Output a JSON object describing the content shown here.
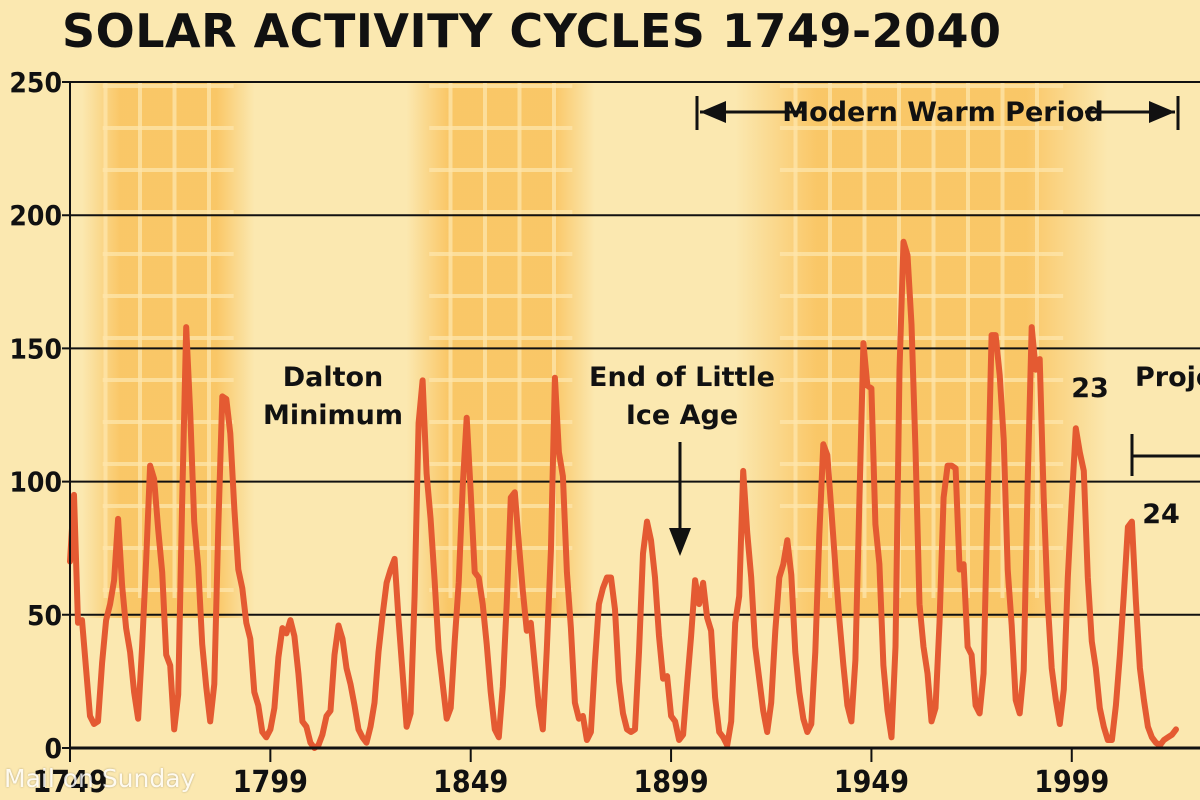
{
  "title": "SOLAR ACTIVITY CYCLES 1749-2040",
  "credit": "Mail on Sunday",
  "colors": {
    "background": "#fbe8b0",
    "band": "#f9c15a",
    "line": "#e45a32",
    "gridline": "#111111"
  },
  "annotations": {
    "dalton": [
      "Dalton",
      "Minimum"
    ],
    "little_ice_age": [
      "End of Little",
      "Ice Age"
    ],
    "modern_warm": "Modern Warm Period",
    "cycle23": "23",
    "cycle24": "24",
    "projected": "Proje"
  },
  "chart_data": {
    "type": "line",
    "title": "SOLAR ACTIVITY CYCLES 1749-2040",
    "xlabel": "",
    "ylabel": "",
    "xlim": [
      1749,
      2030
    ],
    "ylim": [
      0,
      250
    ],
    "y_ticks": [
      0,
      50,
      100,
      150,
      200,
      250
    ],
    "x_tick_labels": [
      "1749",
      "1799",
      "1849",
      "1899",
      "1949",
      "1999"
    ],
    "x_ticks": [
      1749,
      1799,
      1849,
      1899,
      1949,
      1999
    ],
    "grid": "horizontal",
    "shaded_periods": [
      [
        1752,
        1795
      ],
      [
        1833,
        1880
      ],
      [
        1915,
        2008
      ]
    ],
    "series": [
      {
        "name": "",
        "values": [
          [
            1749,
            70
          ],
          [
            1750,
            95
          ],
          [
            1751,
            47
          ],
          [
            1752,
            48
          ],
          [
            1753,
            30
          ],
          [
            1754,
            12
          ],
          [
            1755,
            9
          ],
          [
            1756,
            10
          ],
          [
            1757,
            32
          ],
          [
            1758,
            48
          ],
          [
            1759,
            54
          ],
          [
            1760,
            63
          ],
          [
            1761,
            86
          ],
          [
            1762,
            61
          ],
          [
            1763,
            45
          ],
          [
            1764,
            36
          ],
          [
            1765,
            21
          ],
          [
            1766,
            11
          ],
          [
            1767,
            38
          ],
          [
            1768,
            70
          ],
          [
            1769,
            106
          ],
          [
            1770,
            101
          ],
          [
            1771,
            82
          ],
          [
            1772,
            66
          ],
          [
            1773,
            35
          ],
          [
            1774,
            31
          ],
          [
            1775,
            7
          ],
          [
            1776,
            20
          ],
          [
            1777,
            93
          ],
          [
            1778,
            158
          ],
          [
            1779,
            126
          ],
          [
            1780,
            85
          ],
          [
            1781,
            68
          ],
          [
            1782,
            39
          ],
          [
            1783,
            23
          ],
          [
            1784,
            10
          ],
          [
            1785,
            24
          ],
          [
            1786,
            83
          ],
          [
            1787,
            132
          ],
          [
            1788,
            131
          ],
          [
            1789,
            118
          ],
          [
            1790,
            90
          ],
          [
            1791,
            67
          ],
          [
            1792,
            60
          ],
          [
            1793,
            47
          ],
          [
            1794,
            41
          ],
          [
            1795,
            21
          ],
          [
            1796,
            16
          ],
          [
            1797,
            6
          ],
          [
            1798,
            4
          ],
          [
            1799,
            7
          ],
          [
            1800,
            15
          ],
          [
            1801,
            34
          ],
          [
            1802,
            45
          ],
          [
            1803,
            43
          ],
          [
            1804,
            48
          ],
          [
            1805,
            42
          ],
          [
            1806,
            28
          ],
          [
            1807,
            10
          ],
          [
            1808,
            8
          ],
          [
            1809,
            2
          ],
          [
            1810,
            0
          ],
          [
            1811,
            1
          ],
          [
            1812,
            5
          ],
          [
            1813,
            12
          ],
          [
            1814,
            14
          ],
          [
            1815,
            35
          ],
          [
            1816,
            46
          ],
          [
            1817,
            41
          ],
          [
            1818,
            30
          ],
          [
            1819,
            24
          ],
          [
            1820,
            16
          ],
          [
            1821,
            7
          ],
          [
            1822,
            4
          ],
          [
            1823,
            2
          ],
          [
            1824,
            8
          ],
          [
            1825,
            17
          ],
          [
            1826,
            36
          ],
          [
            1827,
            50
          ],
          [
            1828,
            62
          ],
          [
            1829,
            67
          ],
          [
            1830,
            71
          ],
          [
            1831,
            48
          ],
          [
            1832,
            28
          ],
          [
            1833,
            8
          ],
          [
            1834,
            13
          ],
          [
            1835,
            57
          ],
          [
            1836,
            122
          ],
          [
            1837,
            138
          ],
          [
            1838,
            103
          ],
          [
            1839,
            86
          ],
          [
            1840,
            63
          ],
          [
            1841,
            37
          ],
          [
            1842,
            24
          ],
          [
            1843,
            11
          ],
          [
            1844,
            15
          ],
          [
            1845,
            40
          ],
          [
            1846,
            62
          ],
          [
            1847,
            98
          ],
          [
            1848,
            124
          ],
          [
            1849,
            96
          ],
          [
            1850,
            66
          ],
          [
            1851,
            64
          ],
          [
            1852,
            54
          ],
          [
            1853,
            39
          ],
          [
            1854,
            21
          ],
          [
            1855,
            7
          ],
          [
            1856,
            4
          ],
          [
            1857,
            23
          ],
          [
            1858,
            55
          ],
          [
            1859,
            94
          ],
          [
            1860,
            96
          ],
          [
            1861,
            77
          ],
          [
            1862,
            59
          ],
          [
            1863,
            44
          ],
          [
            1864,
            47
          ],
          [
            1865,
            31
          ],
          [
            1866,
            16
          ],
          [
            1867,
            7
          ],
          [
            1868,
            37
          ],
          [
            1869,
            74
          ],
          [
            1870,
            139
          ],
          [
            1871,
            111
          ],
          [
            1872,
            102
          ],
          [
            1873,
            66
          ],
          [
            1874,
            45
          ],
          [
            1875,
            17
          ],
          [
            1876,
            11
          ],
          [
            1877,
            12
          ],
          [
            1878,
            3
          ],
          [
            1879,
            6
          ],
          [
            1880,
            32
          ],
          [
            1881,
            54
          ],
          [
            1882,
            60
          ],
          [
            1883,
            64
          ],
          [
            1884,
            64
          ],
          [
            1885,
            52
          ],
          [
            1886,
            25
          ],
          [
            1887,
            13
          ],
          [
            1888,
            7
          ],
          [
            1889,
            6
          ],
          [
            1890,
            7
          ],
          [
            1891,
            36
          ],
          [
            1892,
            73
          ],
          [
            1893,
            85
          ],
          [
            1894,
            78
          ],
          [
            1895,
            64
          ],
          [
            1896,
            42
          ],
          [
            1897,
            26
          ],
          [
            1898,
            27
          ],
          [
            1899,
            12
          ],
          [
            1900,
            10
          ],
          [
            1901,
            3
          ],
          [
            1902,
            5
          ],
          [
            1903,
            24
          ],
          [
            1904,
            42
          ],
          [
            1905,
            63
          ],
          [
            1906,
            54
          ],
          [
            1907,
            62
          ],
          [
            1908,
            49
          ],
          [
            1909,
            44
          ],
          [
            1910,
            19
          ],
          [
            1911,
            6
          ],
          [
            1912,
            4
          ],
          [
            1913,
            1
          ],
          [
            1914,
            10
          ],
          [
            1915,
            47
          ],
          [
            1916,
            57
          ],
          [
            1917,
            104
          ],
          [
            1918,
            81
          ],
          [
            1919,
            64
          ],
          [
            1920,
            38
          ],
          [
            1921,
            26
          ],
          [
            1922,
            14
          ],
          [
            1923,
            6
          ],
          [
            1924,
            17
          ],
          [
            1925,
            44
          ],
          [
            1926,
            64
          ],
          [
            1927,
            69
          ],
          [
            1928,
            78
          ],
          [
            1929,
            65
          ],
          [
            1930,
            36
          ],
          [
            1931,
            21
          ],
          [
            1932,
            11
          ],
          [
            1933,
            6
          ],
          [
            1934,
            9
          ],
          [
            1935,
            36
          ],
          [
            1936,
            80
          ],
          [
            1937,
            114
          ],
          [
            1938,
            110
          ],
          [
            1939,
            89
          ],
          [
            1940,
            68
          ],
          [
            1941,
            48
          ],
          [
            1942,
            31
          ],
          [
            1943,
            16
          ],
          [
            1944,
            10
          ],
          [
            1945,
            33
          ],
          [
            1946,
            93
          ],
          [
            1947,
            152
          ],
          [
            1948,
            136
          ],
          [
            1949,
            135
          ],
          [
            1950,
            84
          ],
          [
            1951,
            69
          ],
          [
            1952,
            31
          ],
          [
            1953,
            14
          ],
          [
            1954,
            4
          ],
          [
            1955,
            38
          ],
          [
            1956,
            142
          ],
          [
            1957,
            190
          ],
          [
            1958,
            185
          ],
          [
            1959,
            159
          ],
          [
            1960,
            112
          ],
          [
            1961,
            54
          ],
          [
            1962,
            38
          ],
          [
            1963,
            28
          ],
          [
            1964,
            10
          ],
          [
            1965,
            15
          ],
          [
            1966,
            47
          ],
          [
            1967,
            94
          ],
          [
            1968,
            106
          ],
          [
            1969,
            106
          ],
          [
            1970,
            105
          ],
          [
            1971,
            67
          ],
          [
            1972,
            69
          ],
          [
            1973,
            38
          ],
          [
            1974,
            35
          ],
          [
            1975,
            16
          ],
          [
            1976,
            13
          ],
          [
            1977,
            28
          ],
          [
            1978,
            93
          ],
          [
            1979,
            155
          ],
          [
            1980,
            155
          ],
          [
            1981,
            140
          ],
          [
            1982,
            116
          ],
          [
            1983,
            67
          ],
          [
            1984,
            46
          ],
          [
            1985,
            18
          ],
          [
            1986,
            13
          ],
          [
            1987,
            29
          ],
          [
            1988,
            100
          ],
          [
            1989,
            158
          ],
          [
            1990,
            142
          ],
          [
            1991,
            146
          ],
          [
            1992,
            94
          ],
          [
            1993,
            55
          ],
          [
            1994,
            30
          ],
          [
            1995,
            18
          ],
          [
            1996,
            9
          ],
          [
            1997,
            22
          ],
          [
            1998,
            64
          ],
          [
            1999,
            93
          ],
          [
            2000,
            120
          ],
          [
            2001,
            111
          ],
          [
            2002,
            104
          ],
          [
            2003,
            64
          ],
          [
            2004,
            40
          ],
          [
            2005,
            30
          ],
          [
            2006,
            15
          ],
          [
            2007,
            8
          ],
          [
            2008,
            3
          ],
          [
            2009,
            3
          ],
          [
            2010,
            16
          ],
          [
            2011,
            35
          ],
          [
            2012,
            58
          ],
          [
            2013,
            83
          ],
          [
            2014,
            85
          ],
          [
            2015,
            55
          ],
          [
            2016,
            30
          ],
          [
            2017,
            18
          ],
          [
            2018,
            8
          ],
          [
            2019,
            4
          ],
          [
            2020,
            2
          ],
          [
            2021,
            1
          ],
          [
            2022,
            3
          ],
          [
            2023,
            4
          ],
          [
            2024,
            5
          ],
          [
            2025,
            7
          ]
        ]
      }
    ]
  }
}
